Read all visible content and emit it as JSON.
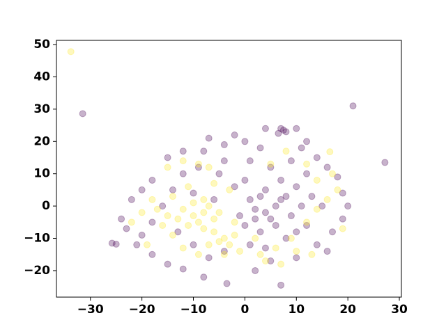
{
  "chart_data": {
    "type": "scatter",
    "xlim": [
      -36.6,
      30.4
    ],
    "ylim": [
      -28.2,
      51.3
    ],
    "xticks": [
      {
        "value": -30,
        "label": "−30"
      },
      {
        "value": -20,
        "label": "−20"
      },
      {
        "value": -10,
        "label": "−10"
      },
      0,
      10,
      20,
      30
    ],
    "yticks": [
      {
        "value": -20,
        "label": "−20"
      },
      {
        "value": -10,
        "label": "−10"
      },
      0,
      10,
      20,
      30,
      40,
      50
    ],
    "grid": false,
    "opacity": 0.3,
    "series": [
      {
        "color": "#440154",
        "x": [
          -31.5,
          21,
          27.2,
          -25.8,
          -25,
          7.5,
          7,
          8,
          6.5,
          4,
          -2,
          -7,
          -4,
          10,
          -15,
          -12,
          -8,
          0,
          3,
          12,
          14,
          -18,
          -20,
          -22,
          -24,
          -23,
          -21,
          -18,
          -15,
          -12,
          -8,
          -3.5,
          7,
          2,
          5,
          10,
          14,
          17,
          19,
          20,
          19,
          18,
          16,
          12,
          10,
          8,
          6,
          4,
          2,
          0,
          3,
          6,
          9,
          11,
          13,
          7,
          4,
          1,
          -2,
          -5,
          -9,
          -12,
          -14,
          -16,
          -13,
          -10,
          -7,
          -4,
          1,
          4,
          8,
          12,
          15,
          5,
          1,
          -4,
          9,
          2,
          5,
          7,
          3,
          -1,
          10,
          16,
          -18,
          -20,
          11,
          -10,
          -6,
          0
        ],
        "values": [
          28.6,
          31,
          13.5,
          -11.5,
          -11.8,
          23.5,
          24,
          23,
          22.5,
          24,
          22,
          21,
          19,
          24,
          15,
          17,
          17,
          20,
          18,
          20,
          15,
          8,
          5,
          2,
          -4,
          -7,
          -12,
          -15,
          -18,
          -19.5,
          -22,
          -24,
          -24.5,
          -20,
          -17,
          -16,
          -12,
          -8,
          -4,
          0,
          4,
          9,
          12,
          10,
          6,
          3,
          0,
          -2,
          -4,
          -6,
          -8,
          -6,
          -3,
          0,
          3,
          8,
          5,
          2,
          6,
          10,
          12,
          10,
          5,
          0,
          -8,
          -12,
          -16,
          -14,
          -12,
          -13,
          -10,
          -6,
          0,
          12,
          14,
          14,
          14,
          -1,
          -4,
          2,
          3,
          -3,
          -8,
          -14,
          -5,
          -9,
          18,
          4,
          2,
          8
        ]
      },
      {
        "color": "#fde725",
        "x": [
          -33.8,
          -10,
          -8,
          -6,
          -12,
          -9,
          -7,
          -11,
          -5,
          -13,
          -8,
          -10,
          -6,
          -4,
          -3,
          -5,
          -2,
          -15,
          -17,
          -16,
          -14,
          -12,
          -9,
          -7,
          -20,
          -18,
          -14,
          -11,
          -6,
          -3,
          -1,
          3,
          6,
          9,
          12,
          14,
          16,
          18,
          19,
          17,
          14,
          12,
          8,
          5,
          -9,
          -15,
          -19,
          -22,
          7,
          4,
          10,
          -4,
          -8,
          -2,
          2,
          13,
          -12,
          -7,
          16.5
        ],
        "values": [
          47.8,
          -3,
          -2,
          -4,
          -1,
          -5,
          0,
          -6,
          -2,
          -4,
          2,
          1,
          -8,
          -10,
          -12,
          -11,
          -9,
          -3,
          -1,
          -6,
          -9,
          -13,
          -15,
          -12,
          -2,
          2,
          3,
          6,
          7,
          5,
          -14,
          -15,
          -13,
          -10,
          -5,
          -1,
          2,
          5,
          -7,
          10,
          8,
          13,
          17,
          13,
          13,
          12,
          -12,
          -5,
          -18,
          -17,
          -14,
          -15,
          -7,
          -5,
          -10,
          -15,
          14,
          12,
          16.8
        ]
      }
    ]
  }
}
